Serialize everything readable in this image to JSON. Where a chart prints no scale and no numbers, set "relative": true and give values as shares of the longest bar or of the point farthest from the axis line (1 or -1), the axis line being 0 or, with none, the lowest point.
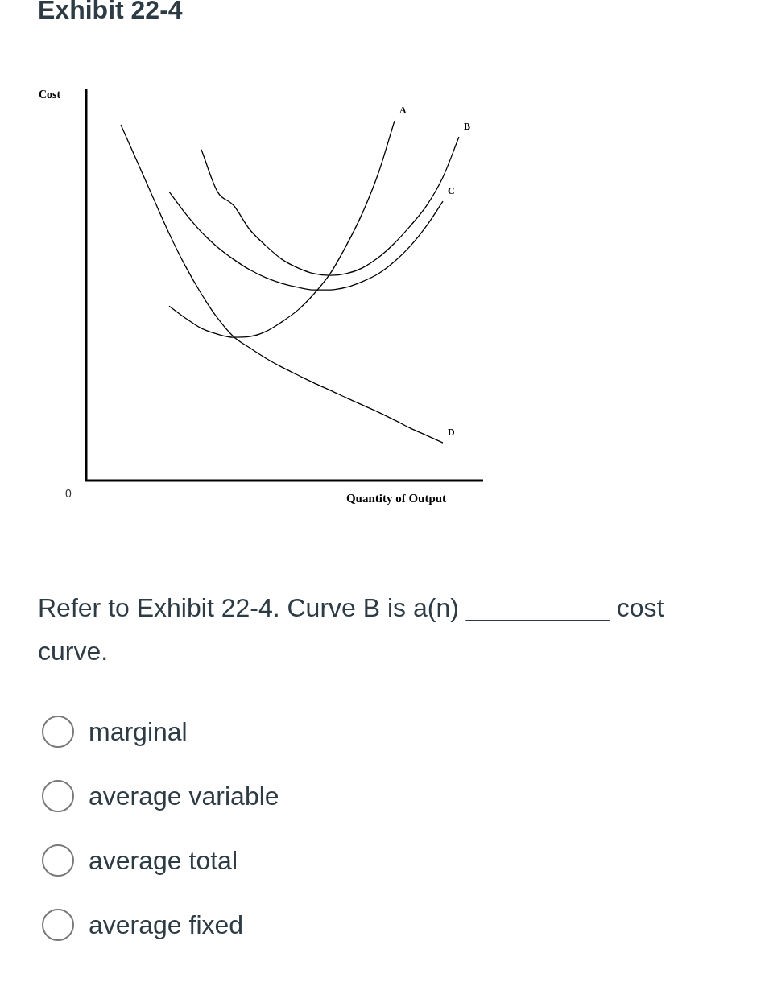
{
  "chart_data": {
    "type": "line",
    "title": "Exhibit 22-4",
    "ylabel": "Cost",
    "xlabel": "Quantity of Output",
    "relative": true,
    "legend": false,
    "marker": "none",
    "line_style": "solid",
    "categories": [
      null,
      null,
      null,
      null,
      null,
      null,
      null,
      null,
      null,
      null,
      null,
      null,
      null,
      null,
      null,
      null,
      null,
      null,
      null,
      null,
      null,
      null
    ],
    "series": [
      {
        "name": "A",
        "color": "#000000",
        "values": [
          null,
          null,
          null,
          0.485,
          0.452,
          0.423,
          0.407,
          0.398,
          0.4,
          0.414,
          0.441,
          0.474,
          0.519,
          0.575,
          0.653,
          0.743,
          0.855,
          1,
          null,
          null,
          null,
          null
        ]
      },
      {
        "name": "B",
        "color": "#000000",
        "values": [
          null,
          null,
          null,
          null,
          null,
          0.92,
          0.803,
          0.765,
          0.698,
          0.653,
          0.615,
          0.591,
          0.575,
          0.57,
          0.575,
          0.591,
          0.62,
          0.66,
          0.709,
          0.765,
          0.843,
          0.955
        ]
      },
      {
        "name": "C",
        "color": "#000000",
        "values": [
          null,
          null,
          null,
          0.803,
          0.743,
          0.691,
          0.649,
          0.615,
          0.586,
          0.564,
          0.548,
          0.537,
          0.53,
          0.53,
          0.537,
          0.553,
          0.575,
          0.609,
          0.653,
          0.709,
          0.776,
          null
        ]
      },
      {
        "name": "D",
        "color": "#000000",
        "values": [
          0.989,
          0.888,
          0.787,
          0.687,
          0.597,
          0.519,
          0.452,
          0.4,
          0.369,
          0.34,
          0.315,
          0.293,
          0.271,
          0.251,
          0.23,
          0.21,
          0.19,
          0.168,
          0.145,
          0.125,
          0.105,
          null
        ]
      }
    ],
    "annotations": [
      "0",
      "Refer to Exhibit 22-4. Curve B is a(n) __________ cost curve.",
      "marginal",
      "average variable",
      "average total",
      "average fixed"
    ]
  }
}
